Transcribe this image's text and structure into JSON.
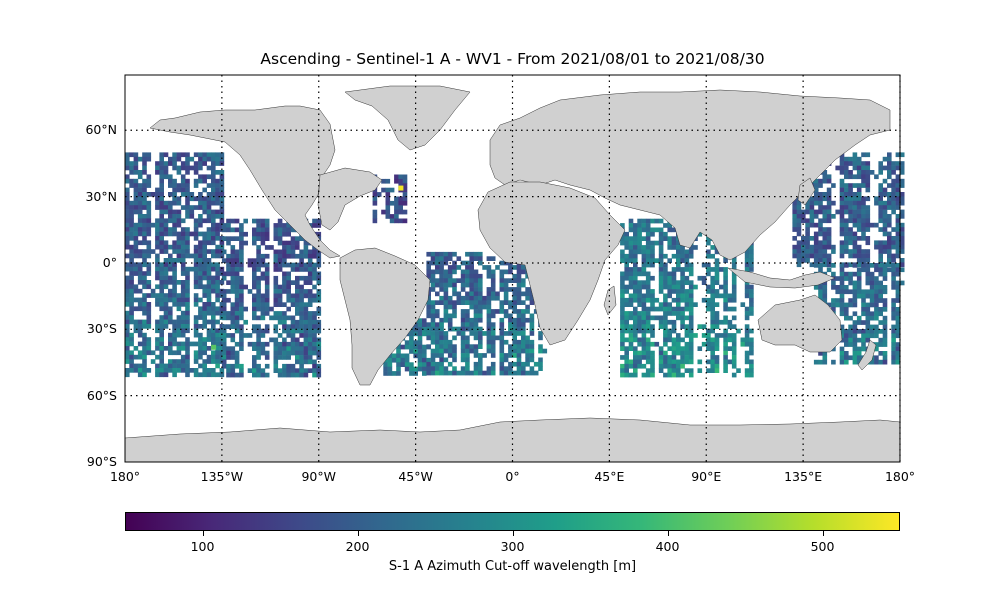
{
  "title": "Ascending - Sentinel-1 A - WV1 - From 2021/08/01 to 2021/08/30",
  "map": {
    "projection": "PlateCarree",
    "lon_range": [
      -180,
      180
    ],
    "lat_range": [
      -90,
      85
    ],
    "gridlines": "dotted",
    "land_color": "#d0d0d0",
    "lat_ticks": [
      {
        "lat": 60,
        "label": "60°N"
      },
      {
        "lat": 30,
        "label": "30°N"
      },
      {
        "lat": 0,
        "label": "0°"
      },
      {
        "lat": -30,
        "label": "30°S"
      },
      {
        "lat": -60,
        "label": "60°S"
      },
      {
        "lat": -90,
        "label": "90°S"
      }
    ],
    "lon_ticks": [
      {
        "lon": -180,
        "label": "180°"
      },
      {
        "lon": -135,
        "label": "135°W"
      },
      {
        "lon": -90,
        "label": "90°W"
      },
      {
        "lon": -45,
        "label": "45°W"
      },
      {
        "lon": 0,
        "label": "0°"
      },
      {
        "lon": 45,
        "label": "45°E"
      },
      {
        "lon": 90,
        "label": "90°E"
      },
      {
        "lon": 135,
        "label": "135°E"
      },
      {
        "lon": 180,
        "label": "180°"
      }
    ]
  },
  "chart_data": {
    "type": "heatmap",
    "variable": "S-1 A Azimuth Cut-off wavelength [m]",
    "colormap": "viridis",
    "vmin": 50,
    "vmax": 550,
    "coverage_lat": [
      -50,
      50
    ],
    "typical_value": 200,
    "swaths": [
      {
        "lon": [
          -180,
          -135
        ],
        "lat": [
          -50,
          50
        ],
        "value": 195
      },
      {
        "lon": [
          -135,
          -90
        ],
        "lat": [
          -50,
          20
        ],
        "value": 185
      },
      {
        "lon": [
          -65,
          -50
        ],
        "lat": [
          20,
          40
        ],
        "value": 170
      },
      {
        "lon": [
          -60,
          -40
        ],
        "lat": [
          -50,
          -25
        ],
        "value": 210
      },
      {
        "lon": [
          -40,
          15
        ],
        "lat": [
          -50,
          5
        ],
        "value": 205
      },
      {
        "lon": [
          50,
          110
        ],
        "lat": [
          -50,
          20
        ],
        "value": 240
      },
      {
        "lon": [
          130,
          180
        ],
        "lat": [
          0,
          50
        ],
        "value": 200
      },
      {
        "lon": [
          140,
          180
        ],
        "lat": [
          -45,
          0
        ],
        "value": 205
      }
    ],
    "hotspots": [
      {
        "lon": -53,
        "lat": 35,
        "value": 540
      },
      {
        "lon": -140,
        "lat": -37,
        "value": 420
      }
    ]
  },
  "colorbar": {
    "label": "S-1 A Azimuth Cut-off wavelength [m]",
    "ticks": [
      100,
      200,
      300,
      400,
      500
    ]
  }
}
